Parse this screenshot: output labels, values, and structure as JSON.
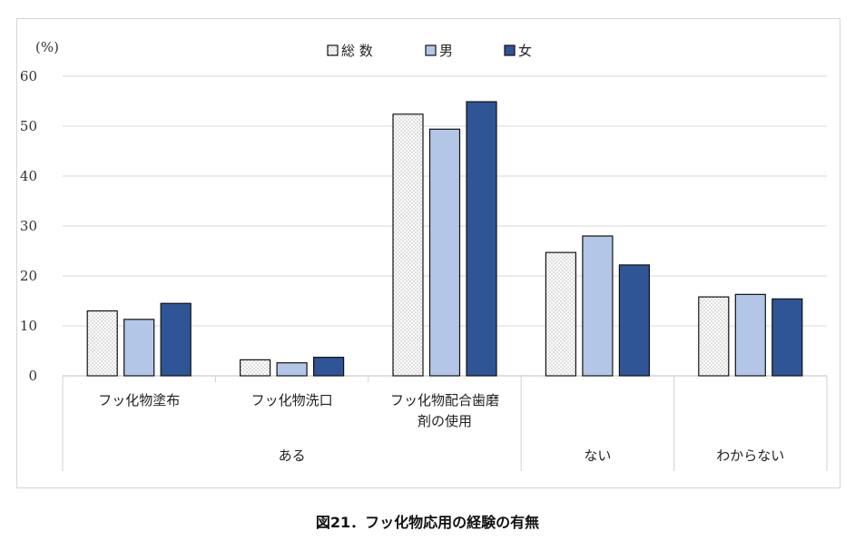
{
  "caption": "図21．フッ化物応用の経験の有無",
  "chart_data": {
    "type": "bar",
    "unit_label": "(%)",
    "ylim": [
      0,
      60
    ],
    "yticks": [
      0,
      10,
      20,
      30,
      40,
      50,
      60
    ],
    "grid": true,
    "legend_position": "top-center",
    "categories": [
      "フッ化物塗布",
      "フッ化物洗口",
      "フッ化物配合歯磨剤の使用",
      "ない",
      "わからない"
    ],
    "category_lines": [
      [
        "フッ化物塗布"
      ],
      [
        "フッ化物洗口"
      ],
      [
        "フッ化物配合歯磨",
        "剤の使用"
      ],
      [
        ""
      ],
      [
        ""
      ]
    ],
    "groups": [
      {
        "label": "ある",
        "span": [
          0,
          2
        ]
      },
      {
        "label": "ない",
        "span": [
          3,
          3
        ]
      },
      {
        "label": "わからない",
        "span": [
          4,
          4
        ]
      }
    ],
    "series": [
      {
        "name": "総 数",
        "color": "#ffffff",
        "pattern": "dots",
        "values": [
          13.0,
          3.2,
          52.4,
          24.7,
          15.8
        ]
      },
      {
        "name": "男",
        "color": "#b4c6e7",
        "pattern": "solid",
        "values": [
          11.3,
          2.6,
          49.4,
          28.0,
          16.3
        ]
      },
      {
        "name": "女",
        "color": "#2f5597",
        "pattern": "solid",
        "values": [
          14.5,
          3.7,
          54.9,
          22.2,
          15.4
        ]
      }
    ]
  }
}
